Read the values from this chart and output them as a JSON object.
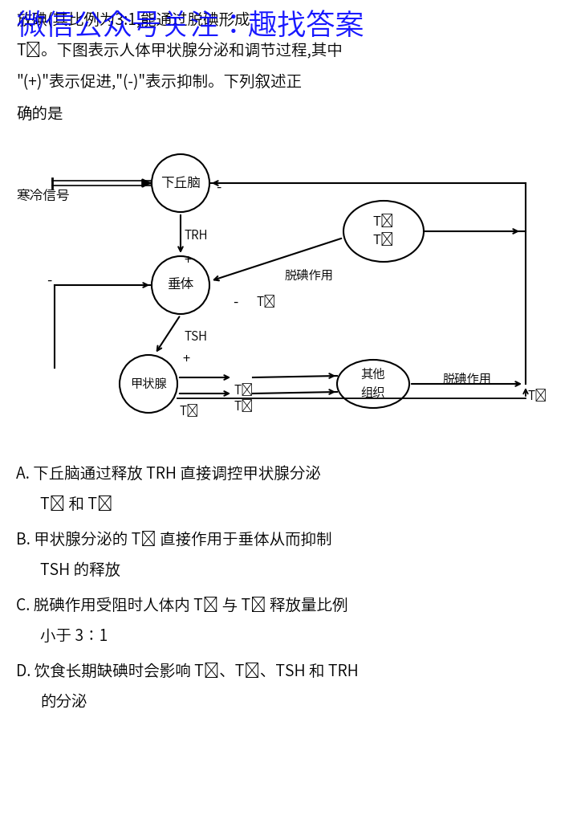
{
  "bg_color": "#ffffff",
  "watermark": "微信公众号关注：趣找答案",
  "line1": "放碘(其比例为3:1,能通过脱碘形成",
  "line2": "T₃。下图表示人体甲状腺分泌和调节过程,其中",
  "line3": "\"(+)\"表示促进,\"(-)\"表示抑制。下列叙述正",
  "line4": "确的是",
  "node_hypo": "下丘脑",
  "node_pitu": "垂体",
  "node_thyr": "甲状腺",
  "node_other": "其他\n组织",
  "node_t3t4": "T₃\nT₄",
  "label_cold": "寒冷信号",
  "label_trh": "TRH",
  "label_tsh": "TSH",
  "label_deio1": "脱碘作用",
  "label_deio2": "脱碘作用",
  "opt_A1": "A. 下丘脑通过释放 TRH 直接调控甲状腺分泌",
  "opt_A2": "T₃ 和 T₄",
  "opt_B1": "B. 甲状腺分泌的 T₄ 直接作用于垂体从而抑制",
  "opt_B2": "TSH 的释放",
  "opt_C1": "C. 脱碘作用受阻时人体内 T₄ 与 T₃ 释放量比例",
  "opt_C2": "小于 3∶1",
  "opt_D1": "D. 饮食长期缺碘时会影响 T₃、T₄、TSH 和 TRH",
  "opt_D2": "的分泌"
}
